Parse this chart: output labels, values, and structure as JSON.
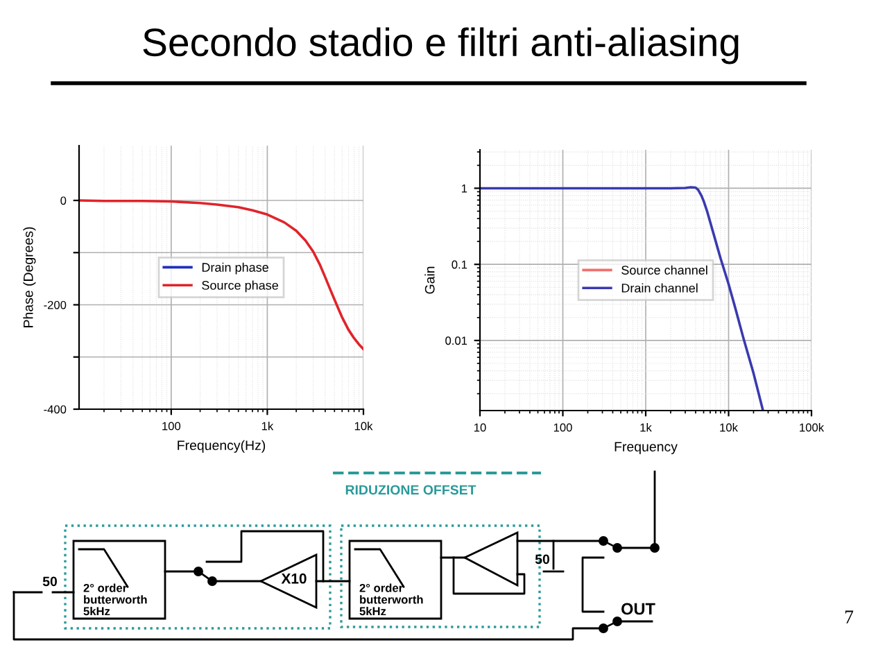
{
  "chart_data": [
    {
      "type": "line",
      "title": "Secondo stadio e filtri anti-aliasing",
      "xlabel": "Frequency(Hz)",
      "ylabel": "Phase (Degrees)",
      "log": "x",
      "x": [
        11,
        20,
        50,
        100,
        200,
        300,
        500,
        700,
        1000,
        1500,
        2000,
        2500,
        3000,
        3500,
        4000,
        4500,
        5000,
        5500,
        6000,
        7000,
        8000,
        9000,
        10000
      ],
      "xlim": [
        11,
        10000
      ],
      "xticks": [
        {
          "value": 100,
          "label": "100"
        },
        {
          "value": 1000,
          "label": "1k"
        },
        {
          "value": 10000,
          "label": "10k"
        }
      ],
      "ylim": [
        -400,
        105
      ],
      "yticks": [
        -400,
        {
          "value": -300,
          "label": null
        },
        -200,
        {
          "value": -100,
          "label": null
        },
        0
      ],
      "series": [
        {
          "name": "Drain phase",
          "color": "#1f2fc0",
          "values": [
            null,
            null,
            null,
            null,
            null,
            null,
            null,
            null,
            null,
            null,
            null,
            null,
            null,
            null,
            null,
            null,
            null,
            null,
            null,
            null,
            null,
            null,
            null
          ]
        },
        {
          "name": "Source phase",
          "color": "#e0242a",
          "values": [
            0,
            -1,
            -1,
            -2,
            -5,
            -8,
            -13,
            -19,
            -27,
            -42,
            -58,
            -77,
            -98,
            -122,
            -147,
            -170,
            -190,
            -208,
            -224,
            -248,
            -264,
            -276,
            -285
          ]
        }
      ],
      "grid": true,
      "legend": "center",
      "marker": "none",
      "line_style": "solid"
    },
    {
      "type": "line",
      "xlabel": "Frequency",
      "ylabel": "Gain",
      "log": "xy",
      "x": [
        10,
        100,
        1000,
        2000,
        3000,
        3500,
        4000,
        4300,
        4700,
        5000,
        5500,
        6000,
        7000,
        8000,
        10000,
        12000,
        15000,
        20000,
        26000
      ],
      "xlim": [
        10,
        100000
      ],
      "xticks": [
        10,
        100,
        {
          "value": 1000,
          "label": "1k"
        },
        {
          "value": 10000,
          "label": "10k"
        },
        {
          "value": 100000,
          "label": "100k"
        }
      ],
      "ylim": [
        0.0012,
        3.2
      ],
      "yticks": [
        0.01,
        0.1,
        1
      ],
      "series": [
        {
          "name": "Source channel",
          "color": "#f07070",
          "values": [
            null,
            null,
            null,
            null,
            null,
            null,
            null,
            null,
            null,
            null,
            null,
            null,
            null,
            null,
            null,
            null,
            null,
            null,
            null
          ]
        },
        {
          "name": "Drain channel",
          "color": "#3a3ab0",
          "values": [
            1,
            1,
            1,
            1,
            1.01,
            1.03,
            1.02,
            0.95,
            0.8,
            0.68,
            0.5,
            0.36,
            0.2,
            0.12,
            0.055,
            0.027,
            0.011,
            0.0037,
            0.0012
          ]
        }
      ],
      "grid": true,
      "legend": "center",
      "marker": "none",
      "line_style": "solid"
    },
    {
      "type": "other",
      "annotations": [
        "RIDUZIONE OFFSET",
        "2° order\nbutterworth\n5kHz",
        "X10",
        "2° order\nbutterworth\n5kHz",
        "50",
        "50",
        "OUT",
        "7"
      ]
    }
  ]
}
